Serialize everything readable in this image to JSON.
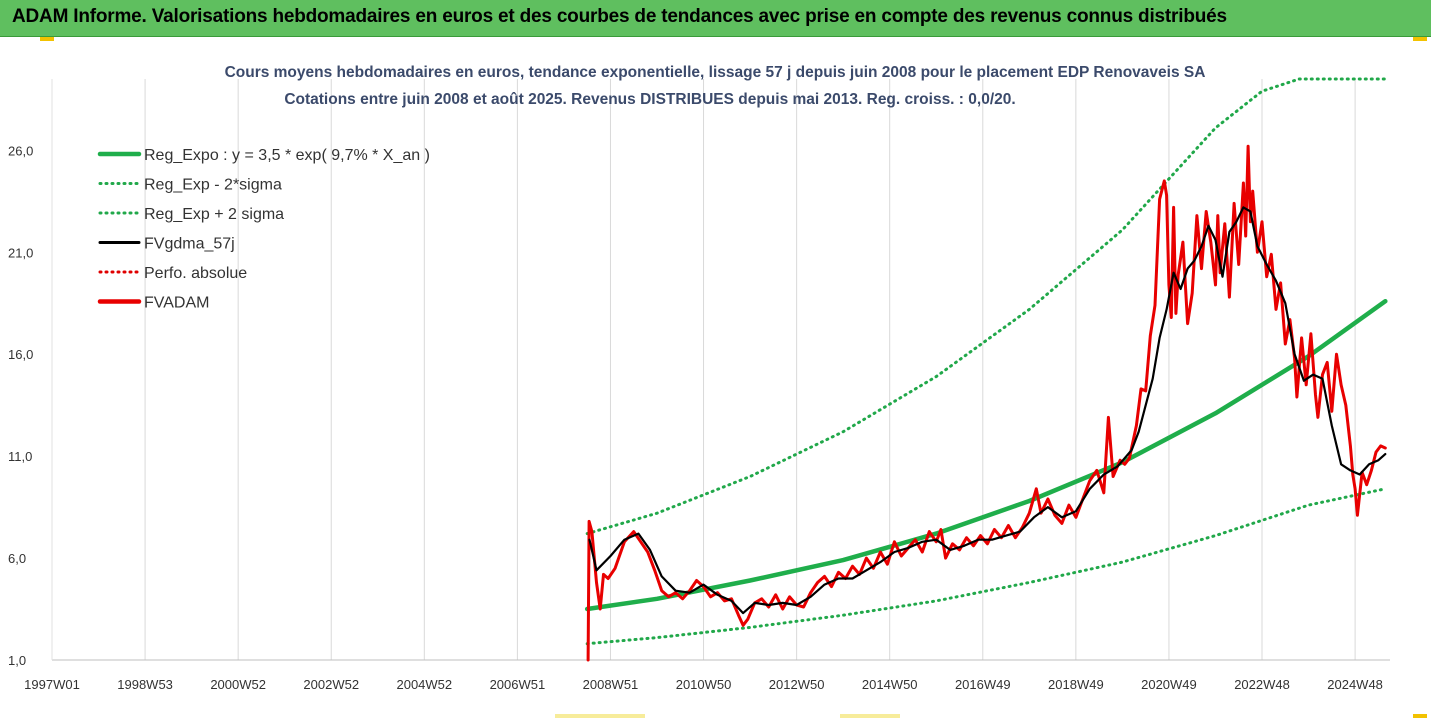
{
  "header": {
    "title": "ADAM Informe. Valorisations hebdomadaires en euros et des courbes de tendances avec prise en compte des revenus connus distribués"
  },
  "colors": {
    "header_bg": "#5fbf5f",
    "trend": "#1fae4b",
    "band": "#21a84a",
    "smooth": "#000000",
    "perf": "#e00000",
    "price": "#e80000"
  },
  "chart_data": {
    "type": "line",
    "title": "Cours moyens hebdomadaires en euros, tendance exponentielle, lissage 57 j depuis juin 2008 pour le placement EDP Renovaveis SA",
    "subtitle": "Cotations entre juin 2008 et août 2025. Revenus DISTRIBUES depuis mai 2013. Reg. croiss. : 0,0/20.",
    "xlabel": "",
    "ylabel": "",
    "x_range": [
      1997.0,
      2025.75
    ],
    "ylim": [
      1.0,
      29.5
    ],
    "y_ticks": [
      {
        "value": 1,
        "label": "1,0"
      },
      {
        "value": 6,
        "label": "6,0"
      },
      {
        "value": 11,
        "label": "11,0"
      },
      {
        "value": 16,
        "label": "16,0"
      },
      {
        "value": 21,
        "label": "21,0"
      },
      {
        "value": 26,
        "label": "26,0"
      }
    ],
    "x_ticks": [
      {
        "pos": 1997.0,
        "label": "1997W01"
      },
      {
        "pos": 1999.0,
        "label": "1998W53"
      },
      {
        "pos": 2001.0,
        "label": "2000W52"
      },
      {
        "pos": 2003.0,
        "label": "2002W52"
      },
      {
        "pos": 2005.0,
        "label": "2004W52"
      },
      {
        "pos": 2007.0,
        "label": "2006W51"
      },
      {
        "pos": 2009.0,
        "label": "2008W51"
      },
      {
        "pos": 2011.0,
        "label": "2010W50"
      },
      {
        "pos": 2013.0,
        "label": "2012W50"
      },
      {
        "pos": 2015.0,
        "label": "2014W50"
      },
      {
        "pos": 2017.0,
        "label": "2016W49"
      },
      {
        "pos": 2019.0,
        "label": "2018W49"
      },
      {
        "pos": 2021.0,
        "label": "2020W49"
      },
      {
        "pos": 2023.0,
        "label": "2022W48"
      },
      {
        "pos": 2025.0,
        "label": "2024W48"
      }
    ],
    "grid": "vertical",
    "legend_position": "top-left",
    "legend": [
      {
        "name": "Reg_Expo : y = 3,5 * exp( 9,7% *  X_an )",
        "color": "#1fae4b",
        "style": "solid-thick"
      },
      {
        "name": "Reg_Exp - 2*sigma",
        "color": "#21a84a",
        "style": "dotted"
      },
      {
        "name": "Reg_Exp + 2 sigma",
        "color": "#21a84a",
        "style": "dotted"
      },
      {
        "name": "FVgdma_57j",
        "color": "#000000",
        "style": "solid"
      },
      {
        "name": "Perfo. absolue",
        "color": "#e00000",
        "style": "dotted"
      },
      {
        "name": "FVADAM",
        "color": "#e80000",
        "style": "solid-thick"
      }
    ],
    "series": [
      {
        "name": "Reg_Expo : y = 3,5 * exp( 9,7% *  X_an )",
        "x": [
          2008.5,
          2010.0,
          2012.0,
          2014.0,
          2016.0,
          2018.0,
          2020.0,
          2022.0,
          2024.0,
          2025.65
        ],
        "y": [
          3.5,
          4.0,
          4.9,
          5.9,
          7.2,
          8.8,
          10.7,
          13.1,
          15.9,
          18.6
        ]
      },
      {
        "name": "Reg_Exp - 2*sigma",
        "x": [
          2008.5,
          2010.0,
          2012.0,
          2014.0,
          2016.0,
          2018.0,
          2020.0,
          2022.0,
          2024.0,
          2025.65
        ],
        "y": [
          1.8,
          2.1,
          2.6,
          3.2,
          3.9,
          4.8,
          5.8,
          7.1,
          8.6,
          9.4
        ]
      },
      {
        "name": "Reg_Exp + 2 sigma",
        "x": [
          2008.5,
          2010.0,
          2012.0,
          2014.0,
          2016.0,
          2018.0,
          2020.0,
          2021.0,
          2022.0,
          2023.0,
          2023.8,
          2025.65
        ],
        "y": [
          7.2,
          8.2,
          10.0,
          12.2,
          14.9,
          18.2,
          22.1,
          24.6,
          27.1,
          28.9,
          29.5,
          29.5
        ]
      },
      {
        "name": "FVgdma_57j",
        "x": [
          2008.55,
          2008.7,
          2009.0,
          2009.3,
          2009.6,
          2009.85,
          2010.1,
          2010.4,
          2010.7,
          2011.0,
          2011.3,
          2011.6,
          2011.85,
          2012.1,
          2012.4,
          2012.7,
          2013.0,
          2013.3,
          2013.6,
          2013.9,
          2014.2,
          2014.5,
          2014.8,
          2015.1,
          2015.4,
          2015.7,
          2016.0,
          2016.3,
          2016.6,
          2016.9,
          2017.2,
          2017.5,
          2017.8,
          2018.1,
          2018.4,
          2018.7,
          2019.0,
          2019.3,
          2019.6,
          2019.9,
          2020.2,
          2020.35,
          2020.5,
          2020.65,
          2020.8,
          2020.95,
          2021.1,
          2021.25,
          2021.4,
          2021.55,
          2021.7,
          2021.85,
          2022.0,
          2022.15,
          2022.3,
          2022.45,
          2022.6,
          2022.75,
          2022.9,
          2023.1,
          2023.3,
          2023.5,
          2023.7,
          2023.9,
          2024.1,
          2024.3,
          2024.5,
          2024.7,
          2024.9,
          2025.1,
          2025.3,
          2025.5,
          2025.65
        ],
        "y": [
          6.9,
          5.4,
          6.1,
          6.9,
          7.2,
          6.4,
          5.1,
          4.4,
          4.3,
          4.7,
          4.2,
          3.9,
          3.3,
          3.8,
          3.7,
          3.8,
          3.7,
          4.1,
          4.7,
          5.0,
          5.0,
          5.4,
          5.8,
          6.3,
          6.5,
          6.8,
          6.9,
          6.4,
          6.6,
          6.9,
          6.9,
          7.1,
          7.3,
          8.0,
          8.5,
          8.0,
          8.3,
          9.4,
          10.1,
          10.5,
          11.3,
          12.2,
          13.5,
          14.8,
          16.8,
          18.2,
          20.0,
          19.2,
          20.2,
          20.6,
          21.3,
          22.3,
          21.6,
          19.8,
          22.0,
          22.5,
          23.2,
          23.0,
          21.3,
          20.4,
          19.6,
          18.5,
          16.0,
          14.7,
          15.0,
          14.8,
          12.5,
          10.6,
          10.3,
          10.1,
          10.6,
          10.8,
          11.1
        ]
      },
      {
        "name": "FVADAM",
        "x": [
          2008.52,
          2008.54,
          2008.6,
          2008.7,
          2008.78,
          2008.85,
          2008.95,
          2009.1,
          2009.3,
          2009.5,
          2009.65,
          2009.8,
          2009.95,
          2010.1,
          2010.25,
          2010.4,
          2010.55,
          2010.7,
          2010.85,
          2011.0,
          2011.15,
          2011.3,
          2011.45,
          2011.6,
          2011.75,
          2011.85,
          2011.95,
          2012.1,
          2012.25,
          2012.4,
          2012.55,
          2012.7,
          2012.85,
          2013.0,
          2013.15,
          2013.3,
          2013.45,
          2013.6,
          2013.75,
          2013.9,
          2014.05,
          2014.2,
          2014.35,
          2014.5,
          2014.65,
          2014.8,
          2014.95,
          2015.1,
          2015.25,
          2015.4,
          2015.55,
          2015.7,
          2015.85,
          2016.0,
          2016.1,
          2016.2,
          2016.35,
          2016.5,
          2016.65,
          2016.8,
          2016.95,
          2017.1,
          2017.25,
          2017.4,
          2017.55,
          2017.7,
          2017.85,
          2018.0,
          2018.15,
          2018.25,
          2018.4,
          2018.55,
          2018.7,
          2018.85,
          2019.0,
          2019.15,
          2019.3,
          2019.45,
          2019.6,
          2019.7,
          2019.8,
          2019.95,
          2020.05,
          2020.15,
          2020.3,
          2020.4,
          2020.5,
          2020.6,
          2020.7,
          2020.8,
          2020.9,
          2020.95,
          2021.0,
          2021.05,
          2021.1,
          2021.15,
          2021.2,
          2021.3,
          2021.4,
          2021.5,
          2021.6,
          2021.7,
          2021.8,
          2021.9,
          2022.0,
          2022.05,
          2022.1,
          2022.2,
          2022.3,
          2022.4,
          2022.5,
          2022.6,
          2022.65,
          2022.7,
          2022.75,
          2022.8,
          2022.9,
          2023.0,
          2023.1,
          2023.2,
          2023.3,
          2023.4,
          2023.5,
          2023.6,
          2023.7,
          2023.75,
          2023.85,
          2023.95,
          2024.05,
          2024.15,
          2024.2,
          2024.3,
          2024.4,
          2024.5,
          2024.6,
          2024.7,
          2024.8,
          2024.9,
          2024.95,
          2025.0,
          2025.05,
          2025.15,
          2025.25,
          2025.35,
          2025.45,
          2025.55,
          2025.65
        ],
        "y": [
          1.0,
          7.8,
          7.3,
          4.8,
          3.5,
          5.2,
          5.0,
          5.5,
          6.8,
          7.3,
          6.8,
          6.3,
          5.4,
          4.4,
          4.1,
          4.3,
          4.0,
          4.4,
          4.9,
          4.6,
          4.1,
          4.3,
          3.9,
          4.0,
          3.2,
          2.7,
          3.0,
          3.8,
          4.0,
          3.6,
          4.2,
          3.5,
          4.1,
          3.7,
          3.6,
          4.3,
          4.8,
          5.1,
          4.6,
          5.3,
          5.0,
          5.6,
          5.2,
          6.0,
          5.5,
          6.3,
          5.7,
          6.8,
          6.1,
          6.5,
          6.9,
          6.3,
          7.3,
          6.8,
          7.4,
          6.0,
          6.7,
          6.4,
          7.0,
          6.6,
          7.1,
          6.7,
          7.4,
          7.0,
          7.6,
          7.0,
          7.5,
          8.2,
          9.4,
          8.2,
          8.9,
          8.1,
          7.7,
          8.6,
          8.0,
          8.9,
          9.8,
          10.3,
          9.2,
          12.9,
          10.0,
          10.8,
          10.6,
          10.9,
          12.5,
          14.3,
          14.2,
          16.9,
          18.4,
          23.6,
          24.5,
          23.8,
          19.4,
          17.8,
          23.2,
          18.0,
          19.9,
          21.5,
          17.5,
          19.0,
          22.8,
          20.2,
          23.0,
          21.5,
          19.4,
          22.8,
          20.0,
          22.4,
          18.8,
          23.4,
          20.4,
          24.4,
          21.8,
          26.2,
          22.5,
          24.0,
          21.0,
          22.5,
          19.8,
          20.9,
          18.2,
          19.5,
          16.5,
          17.7,
          15.8,
          13.9,
          16.8,
          14.5,
          17.0,
          14.0,
          12.9,
          15.0,
          15.6,
          13.2,
          16.0,
          14.5,
          13.5,
          11.5,
          10.1,
          9.4,
          8.1,
          10.2,
          9.6,
          10.3,
          11.2,
          11.5,
          11.4
        ]
      }
    ]
  }
}
